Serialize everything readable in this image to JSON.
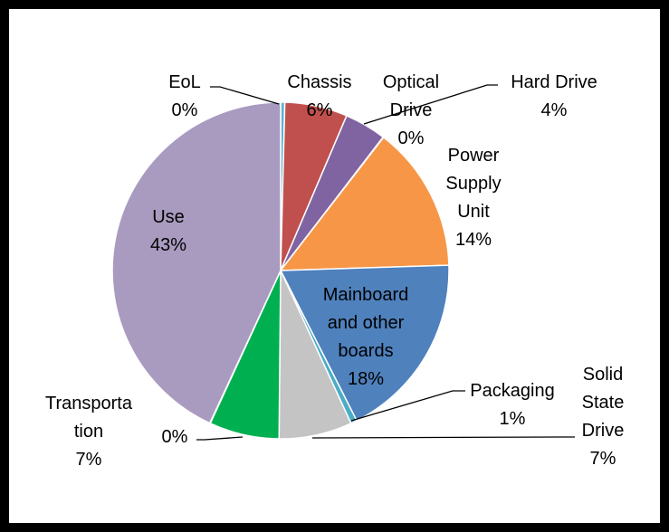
{
  "chart_data": {
    "type": "pie",
    "title": "",
    "slices": [
      {
        "key": "eol",
        "label_lines": [
          "EoL",
          "0%"
        ],
        "value": 0.4,
        "color": "#5fb3d1"
      },
      {
        "key": "chassis",
        "label_lines": [
          "Chassis",
          "6%"
        ],
        "value": 6,
        "color": "#c0504d"
      },
      {
        "key": "hard-drive",
        "label_lines": [
          "Hard Drive",
          "4%"
        ],
        "value": 4,
        "color": "#8064a2"
      },
      {
        "key": "optical-drive",
        "label_lines": [
          "Optical",
          "Drive",
          "0%"
        ],
        "value": 0.05,
        "color": "#8064a2"
      },
      {
        "key": "power-supply-unit",
        "label_lines": [
          "Power",
          "Supply",
          "Unit",
          "14%"
        ],
        "value": 14,
        "color": "#f79646"
      },
      {
        "key": "mainboard-and-other-boards",
        "label_lines": [
          "Mainboard",
          "and other",
          "boards",
          "18%"
        ],
        "value": 18,
        "color": "#4f81bd"
      },
      {
        "key": "packaging",
        "label_lines": [
          "Packaging",
          "1%"
        ],
        "value": 0.6,
        "color": "#4bacc6"
      },
      {
        "key": "solid-state-drive",
        "label_lines": [
          "Solid",
          "State",
          "Drive",
          "7%"
        ],
        "value": 7,
        "color": "#c4c4c4"
      },
      {
        "key": "transportation",
        "label_lines": [
          "Transporta",
          "tion",
          "7%"
        ],
        "value": 6.7,
        "color": "#00b050"
      },
      {
        "key": "unlabeled-small",
        "label_lines": [
          "0%"
        ],
        "value": 0.05,
        "color": "#00b050"
      },
      {
        "key": "use",
        "label_lines": [
          "Use",
          "43%"
        ],
        "value": 43,
        "color": "#a99bc0"
      }
    ]
  }
}
